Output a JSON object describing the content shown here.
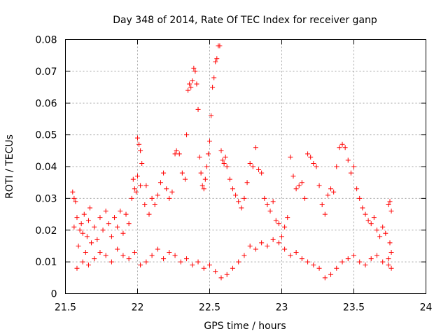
{
  "chart_data": {
    "type": "scatter",
    "title": "Day 348 of 2014, Rate Of TEC Index for receiver ganp",
    "xlabel": "GPS time / hours",
    "ylabel": "ROTI / TECUs",
    "xlim": [
      21.5,
      24
    ],
    "ylim": [
      0,
      0.08
    ],
    "xticks": [
      21.5,
      22,
      22.5,
      23,
      23.5,
      24
    ],
    "xtick_labels": [
      "21.5",
      "22",
      "22.5",
      "23",
      "23.5",
      "24"
    ],
    "yticks": [
      0,
      0.01,
      0.02,
      0.03,
      0.04,
      0.05,
      0.06,
      0.07,
      0.08
    ],
    "ytick_labels": [
      "0",
      "0.01",
      "0.02",
      "0.03",
      "0.04",
      "0.05",
      "0.06",
      "0.07",
      "0.08"
    ],
    "grid": true,
    "marker": "plus",
    "color": "#ff0000",
    "series": [
      {
        "name": "ROTI",
        "points": [
          [
            21.55,
            0.032
          ],
          [
            21.56,
            0.03
          ],
          [
            21.57,
            0.029
          ],
          [
            21.56,
            0.021
          ],
          [
            21.58,
            0.024
          ],
          [
            21.59,
            0.015
          ],
          [
            21.6,
            0.02
          ],
          [
            21.61,
            0.022
          ],
          [
            21.62,
            0.019
          ],
          [
            21.63,
            0.025
          ],
          [
            21.64,
            0.013
          ],
          [
            21.65,
            0.018
          ],
          [
            21.66,
            0.023
          ],
          [
            21.67,
            0.027
          ],
          [
            21.68,
            0.016
          ],
          [
            21.7,
            0.021
          ],
          [
            21.72,
            0.017
          ],
          [
            21.74,
            0.024
          ],
          [
            21.76,
            0.02
          ],
          [
            21.78,
            0.026
          ],
          [
            21.8,
            0.022
          ],
          [
            21.82,
            0.018
          ],
          [
            21.84,
            0.024
          ],
          [
            21.86,
            0.021
          ],
          [
            21.88,
            0.026
          ],
          [
            21.9,
            0.019
          ],
          [
            21.92,
            0.025
          ],
          [
            21.94,
            0.022
          ],
          [
            21.96,
            0.03
          ],
          [
            21.97,
            0.036
          ],
          [
            21.98,
            0.033
          ],
          [
            21.99,
            0.032
          ],
          [
            22.0,
            0.049
          ],
          [
            22.01,
            0.047
          ],
          [
            22.02,
            0.045
          ],
          [
            22.03,
            0.041
          ],
          [
            22.0,
            0.037
          ],
          [
            22.02,
            0.034
          ],
          [
            22.05,
            0.028
          ],
          [
            22.06,
            0.034
          ],
          [
            22.08,
            0.025
          ],
          [
            22.1,
            0.03
          ],
          [
            22.12,
            0.028
          ],
          [
            22.14,
            0.031
          ],
          [
            22.16,
            0.035
          ],
          [
            22.18,
            0.038
          ],
          [
            22.2,
            0.033
          ],
          [
            22.22,
            0.03
          ],
          [
            22.24,
            0.032
          ],
          [
            22.26,
            0.044
          ],
          [
            22.27,
            0.045
          ],
          [
            22.29,
            0.044
          ],
          [
            22.31,
            0.038
          ],
          [
            22.33,
            0.036
          ],
          [
            22.34,
            0.05
          ],
          [
            22.35,
            0.064
          ],
          [
            22.36,
            0.066
          ],
          [
            22.37,
            0.065
          ],
          [
            22.38,
            0.067
          ],
          [
            22.39,
            0.071
          ],
          [
            22.4,
            0.07
          ],
          [
            22.41,
            0.066
          ],
          [
            22.42,
            0.058
          ],
          [
            22.43,
            0.043
          ],
          [
            22.44,
            0.038
          ],
          [
            22.45,
            0.034
          ],
          [
            22.46,
            0.033
          ],
          [
            22.47,
            0.036
          ],
          [
            22.48,
            0.04
          ],
          [
            22.49,
            0.044
          ],
          [
            22.5,
            0.048
          ],
          [
            22.51,
            0.056
          ],
          [
            22.52,
            0.065
          ],
          [
            22.53,
            0.068
          ],
          [
            22.54,
            0.073
          ],
          [
            22.55,
            0.074
          ],
          [
            22.56,
            0.078
          ],
          [
            22.57,
            0.078
          ],
          [
            22.58,
            0.045
          ],
          [
            22.59,
            0.042
          ],
          [
            22.6,
            0.041
          ],
          [
            22.61,
            0.043
          ],
          [
            22.62,
            0.04
          ],
          [
            22.64,
            0.036
          ],
          [
            22.66,
            0.033
          ],
          [
            22.68,
            0.031
          ],
          [
            22.7,
            0.029
          ],
          [
            22.72,
            0.027
          ],
          [
            22.74,
            0.03
          ],
          [
            22.76,
            0.035
          ],
          [
            22.78,
            0.041
          ],
          [
            22.8,
            0.04
          ],
          [
            22.82,
            0.046
          ],
          [
            22.84,
            0.039
          ],
          [
            22.86,
            0.038
          ],
          [
            22.88,
            0.03
          ],
          [
            22.9,
            0.028
          ],
          [
            22.92,
            0.026
          ],
          [
            22.94,
            0.029
          ],
          [
            22.96,
            0.023
          ],
          [
            22.98,
            0.022
          ],
          [
            23.0,
            0.018
          ],
          [
            23.02,
            0.021
          ],
          [
            23.04,
            0.024
          ],
          [
            23.06,
            0.043
          ],
          [
            23.08,
            0.037
          ],
          [
            23.1,
            0.033
          ],
          [
            23.12,
            0.034
          ],
          [
            23.14,
            0.035
          ],
          [
            23.16,
            0.03
          ],
          [
            23.18,
            0.044
          ],
          [
            23.2,
            0.043
          ],
          [
            23.22,
            0.041
          ],
          [
            23.24,
            0.04
          ],
          [
            23.26,
            0.034
          ],
          [
            23.28,
            0.028
          ],
          [
            23.3,
            0.025
          ],
          [
            23.32,
            0.031
          ],
          [
            23.34,
            0.033
          ],
          [
            23.36,
            0.032
          ],
          [
            23.38,
            0.04
          ],
          [
            23.4,
            0.046
          ],
          [
            23.42,
            0.047
          ],
          [
            23.44,
            0.046
          ],
          [
            23.46,
            0.042
          ],
          [
            23.48,
            0.038
          ],
          [
            23.5,
            0.04
          ],
          [
            23.52,
            0.033
          ],
          [
            23.54,
            0.03
          ],
          [
            23.56,
            0.027
          ],
          [
            23.58,
            0.025
          ],
          [
            23.6,
            0.023
          ],
          [
            23.62,
            0.022
          ],
          [
            23.64,
            0.024
          ],
          [
            23.66,
            0.02
          ],
          [
            23.68,
            0.018
          ],
          [
            23.7,
            0.021
          ],
          [
            23.72,
            0.019
          ],
          [
            23.74,
            0.028
          ],
          [
            23.75,
            0.029
          ],
          [
            23.76,
            0.026
          ],
          [
            23.75,
            0.016
          ],
          [
            23.76,
            0.013
          ],
          [
            23.74,
            0.011
          ],
          [
            21.58,
            0.008
          ],
          [
            21.62,
            0.01
          ],
          [
            21.66,
            0.009
          ],
          [
            21.7,
            0.011
          ],
          [
            21.74,
            0.013
          ],
          [
            21.78,
            0.012
          ],
          [
            21.82,
            0.01
          ],
          [
            21.86,
            0.014
          ],
          [
            21.9,
            0.012
          ],
          [
            21.94,
            0.011
          ],
          [
            21.98,
            0.013
          ],
          [
            22.02,
            0.009
          ],
          [
            22.06,
            0.01
          ],
          [
            22.1,
            0.012
          ],
          [
            22.14,
            0.014
          ],
          [
            22.18,
            0.011
          ],
          [
            22.22,
            0.013
          ],
          [
            22.26,
            0.012
          ],
          [
            22.3,
            0.01
          ],
          [
            22.34,
            0.011
          ],
          [
            22.38,
            0.009
          ],
          [
            22.42,
            0.01
          ],
          [
            22.46,
            0.008
          ],
          [
            22.5,
            0.009
          ],
          [
            22.54,
            0.007
          ],
          [
            22.58,
            0.005
          ],
          [
            22.62,
            0.006
          ],
          [
            22.66,
            0.008
          ],
          [
            22.7,
            0.01
          ],
          [
            22.74,
            0.012
          ],
          [
            22.78,
            0.015
          ],
          [
            22.82,
            0.014
          ],
          [
            22.86,
            0.016
          ],
          [
            22.9,
            0.015
          ],
          [
            22.94,
            0.017
          ],
          [
            22.98,
            0.016
          ],
          [
            23.02,
            0.014
          ],
          [
            23.06,
            0.012
          ],
          [
            23.1,
            0.013
          ],
          [
            23.14,
            0.011
          ],
          [
            23.18,
            0.01
          ],
          [
            23.22,
            0.009
          ],
          [
            23.26,
            0.008
          ],
          [
            23.3,
            0.005
          ],
          [
            23.34,
            0.006
          ],
          [
            23.38,
            0.008
          ],
          [
            23.42,
            0.01
          ],
          [
            23.46,
            0.011
          ],
          [
            23.5,
            0.012
          ],
          [
            23.54,
            0.01
          ],
          [
            23.58,
            0.009
          ],
          [
            23.62,
            0.011
          ],
          [
            23.66,
            0.012
          ],
          [
            23.7,
            0.01
          ],
          [
            23.74,
            0.009
          ],
          [
            23.76,
            0.008
          ]
        ]
      }
    ]
  }
}
